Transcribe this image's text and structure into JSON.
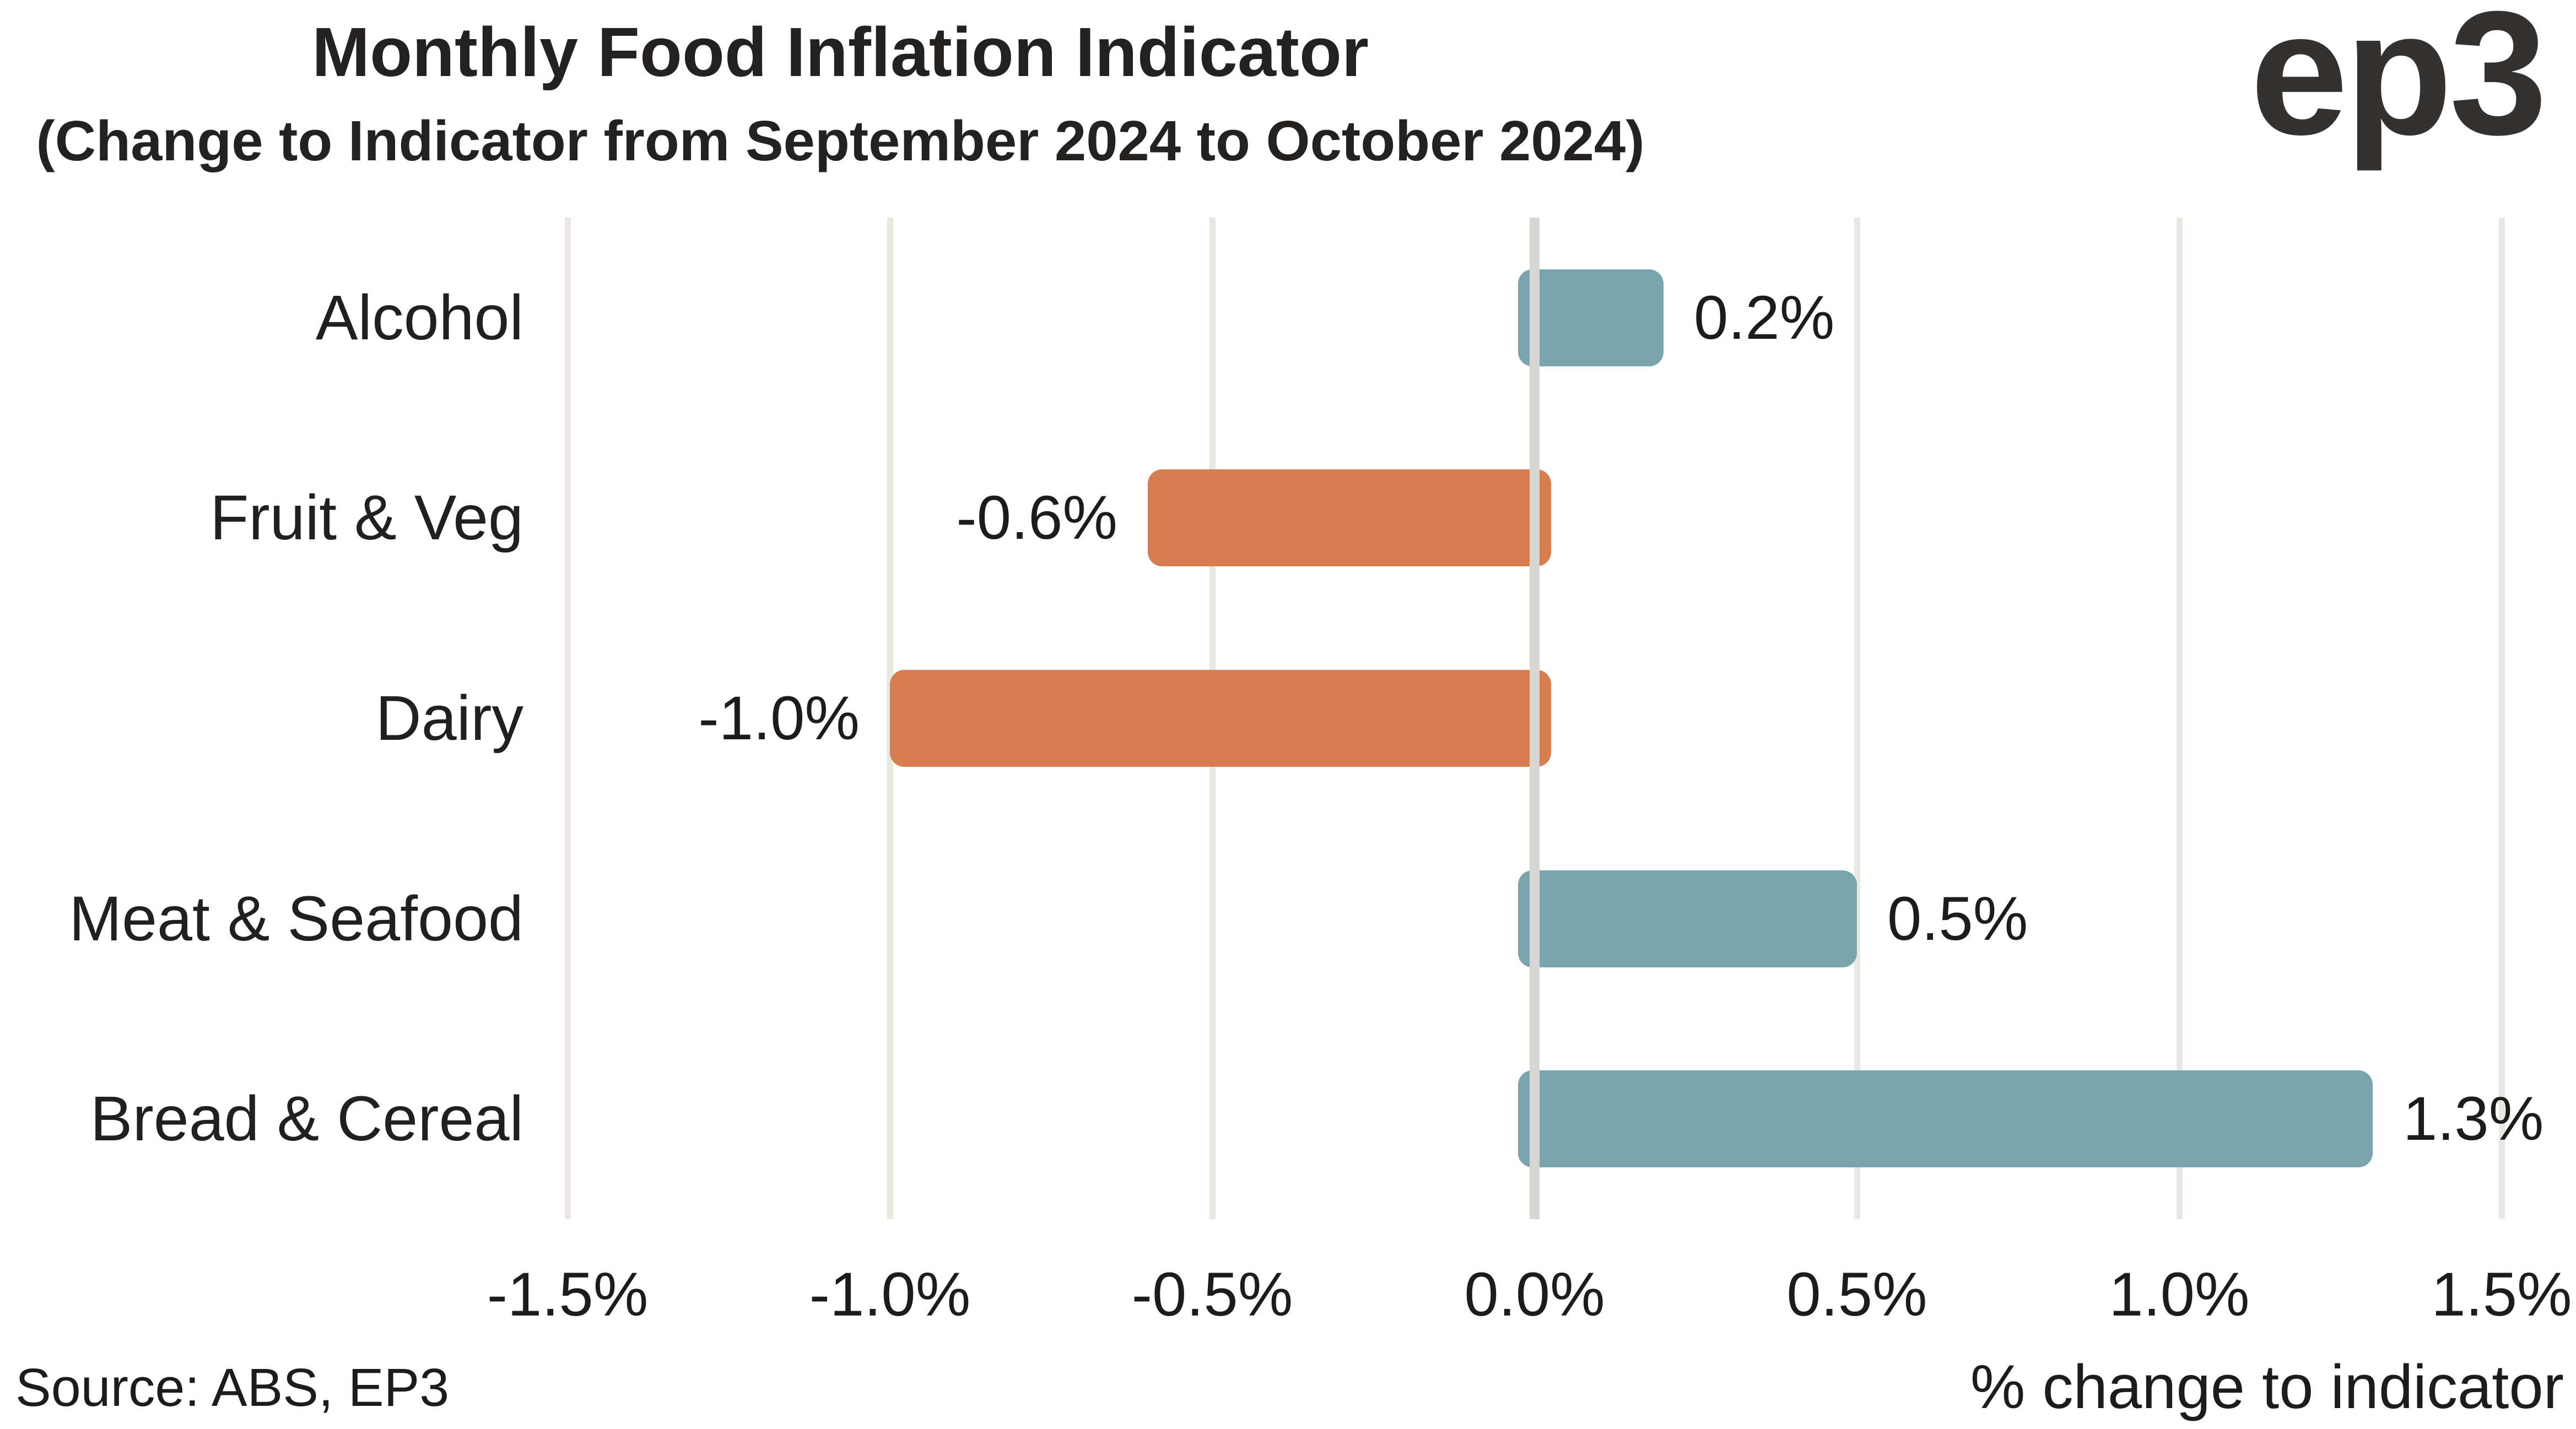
{
  "header": {
    "title": "Monthly Food Inflation Indicator",
    "subtitle": "(Change to Indicator from September 2024 to October 2024)",
    "logo_text": "ep3"
  },
  "chart_data": {
    "type": "bar",
    "orientation": "horizontal",
    "title": "Monthly Food Inflation Indicator",
    "subtitle": "(Change to Indicator from September 2024 to October 2024)",
    "categories": [
      "Alcohol",
      "Fruit & Veg",
      "Dairy",
      "Meat & Seafood",
      "Bread & Cereal"
    ],
    "values": [
      0.2,
      -0.6,
      -1.0,
      0.5,
      1.3
    ],
    "value_labels": [
      "0.2%",
      "-0.6%",
      "-1.0%",
      "0.5%",
      "1.3%"
    ],
    "xlabel": "% change to indicator",
    "ylabel": "",
    "x_ticks": [
      "-1.5%",
      "-1.0%",
      "-0.5%",
      "0.0%",
      "0.5%",
      "1.0%",
      "1.5%"
    ],
    "x_tick_values": [
      -1.5,
      -1.0,
      -0.5,
      0.0,
      0.5,
      1.0,
      1.5
    ],
    "xlim": [
      -1.5,
      1.5
    ],
    "grid": "vertical-only",
    "legend": "none",
    "colors": {
      "positive": "#77a4ad",
      "negative": "#d87d4f",
      "gridline": "#e9e7e0",
      "zero_line": "#d7d6d3",
      "text": "#1d1c1b"
    }
  },
  "footer": {
    "source": "Source: ABS, EP3"
  }
}
